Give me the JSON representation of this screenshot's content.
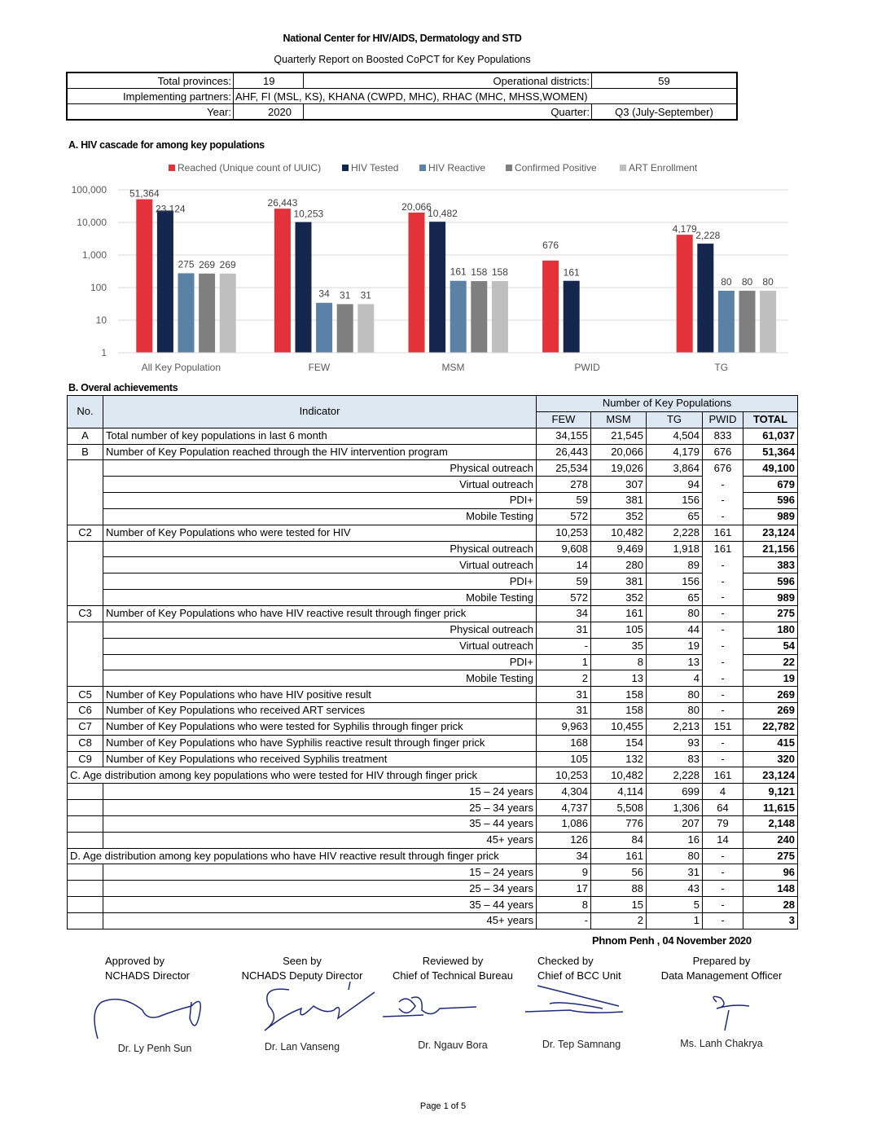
{
  "header": {
    "org": "National Center for HIV/AIDS, Dermatology and STD",
    "report_title": "Quarterly Report on Boosted CoPCT for Key Populations",
    "total_provinces_label": "Total provinces:",
    "total_provinces": "19",
    "operational_districts_label": "Operational districts:",
    "operational_districts": "59",
    "partners_label": "Implementing partners:",
    "partners": "AHF, FI (MSL, KS), KHANA (CWPD, MHC), RHAC (MHC, MHSS,WOMEN)",
    "year_label": "Year:",
    "year": "2020",
    "quarter_label": "Quarter:",
    "quarter": "Q3 (July-September)"
  },
  "section_a": "A. HIV cascade for among key populations",
  "chart_data": {
    "type": "bar",
    "title": "",
    "xlabel": "",
    "ylabel": "",
    "yscale": "log",
    "ylim": [
      1,
      100000
    ],
    "yticks": [
      "1",
      "10",
      "100",
      "1,000",
      "10,000",
      "100,000"
    ],
    "grid": true,
    "legend": "top",
    "categories": [
      "All Key Population",
      "FEW",
      "MSM",
      "PWID",
      "TG"
    ],
    "series": [
      {
        "name": "Reached (Unique count of UUIC)",
        "color": "#e3323a",
        "values": [
          51364,
          26443,
          20066,
          676,
          4179
        ],
        "labels": [
          "51,364",
          "26,443",
          "20,066",
          "676",
          "4,179"
        ]
      },
      {
        "name": "HIV Tested",
        "color": "#14264d",
        "values": [
          23124,
          10253,
          10482,
          161,
          2228
        ],
        "labels": [
          "23,124",
          "10,253",
          "10,482",
          "161",
          "2,228"
        ]
      },
      {
        "name": "HIV Reactive",
        "color": "#5b82a5",
        "values": [
          275,
          34,
          161,
          null,
          80
        ],
        "labels": [
          "275",
          "34",
          "161",
          "",
          "80"
        ]
      },
      {
        "name": "Confirmed Positive",
        "color": "#7f7f7f",
        "values": [
          269,
          31,
          158,
          null,
          80
        ],
        "labels": [
          "269",
          "31",
          "158",
          "",
          "80"
        ]
      },
      {
        "name": "ART Enrollment",
        "color": "#bfbfbf",
        "values": [
          269,
          31,
          158,
          null,
          80
        ],
        "labels": [
          "269",
          "31",
          "158",
          "",
          "80"
        ]
      }
    ]
  },
  "section_b": "B. Overal achievements",
  "table": {
    "h_no": "No.",
    "h_indicator": "Indicator",
    "h_group": "Number of Key Populations",
    "cols": [
      "FEW",
      "MSM",
      "TG",
      "PWID",
      "TOTAL"
    ],
    "rows": [
      {
        "no": "A",
        "ind": "Total number of key populations in last 6 month",
        "v": [
          "34,155",
          "21,545",
          "4,504",
          "833",
          "61,037"
        ]
      },
      {
        "no": "B",
        "ind": "Number of Key Population reached through the HIV intervention program",
        "v": [
          "26,443",
          "20,066",
          "4,179",
          "676",
          "51,364"
        ]
      },
      {
        "sub": true,
        "ind": "Physical outreach",
        "v": [
          "25,534",
          "19,026",
          "3,864",
          "676",
          "49,100"
        ]
      },
      {
        "sub": true,
        "ind": "Virtual outreach",
        "v": [
          "278",
          "307",
          "94",
          "-",
          "679"
        ]
      },
      {
        "sub": true,
        "ind": "PDI+",
        "v": [
          "59",
          "381",
          "156",
          "-",
          "596"
        ]
      },
      {
        "sub": true,
        "ind": "Mobile Testing",
        "v": [
          "572",
          "352",
          "65",
          "-",
          "989"
        ]
      },
      {
        "no": "C2",
        "ind": "Number of Key Populations who were tested for HIV",
        "v": [
          "10,253",
          "10,482",
          "2,228",
          "161",
          "23,124"
        ]
      },
      {
        "sub": true,
        "ind": "Physical outreach",
        "v": [
          "9,608",
          "9,469",
          "1,918",
          "161",
          "21,156"
        ]
      },
      {
        "sub": true,
        "ind": "Virtual outreach",
        "v": [
          "14",
          "280",
          "89",
          "-",
          "383"
        ]
      },
      {
        "sub": true,
        "ind": "PDI+",
        "v": [
          "59",
          "381",
          "156",
          "-",
          "596"
        ]
      },
      {
        "sub": true,
        "ind": "Mobile Testing",
        "v": [
          "572",
          "352",
          "65",
          "-",
          "989"
        ]
      },
      {
        "no": "C3",
        "ind": "Number of Key Populations who have HIV reactive result through finger prick",
        "v": [
          "34",
          "161",
          "80",
          "-",
          "275"
        ]
      },
      {
        "sub": true,
        "ind": "Physical outreach",
        "v": [
          "31",
          "105",
          "44",
          "-",
          "180"
        ]
      },
      {
        "sub": true,
        "ind": "Virtual outreach",
        "v": [
          "-",
          "35",
          "19",
          "-",
          "54"
        ]
      },
      {
        "sub": true,
        "ind": "PDI+",
        "v": [
          "1",
          "8",
          "13",
          "-",
          "22"
        ]
      },
      {
        "sub": true,
        "ind": "Mobile Testing",
        "v": [
          "2",
          "13",
          "4",
          "-",
          "19"
        ]
      },
      {
        "no": "C5",
        "ind": "Number of Key Populations who have HIV positive result",
        "v": [
          "31",
          "158",
          "80",
          "-",
          "269"
        ]
      },
      {
        "no": "C6",
        "ind": "Number of Key Populations who received ART services",
        "v": [
          "31",
          "158",
          "80",
          "-",
          "269"
        ]
      },
      {
        "no": "C7",
        "ind": "Number of Key Populations who were tested for Syphilis through finger prick",
        "v": [
          "9,963",
          "10,455",
          "2,213",
          "151",
          "22,782"
        ]
      },
      {
        "no": "C8",
        "ind": "Number of Key Populations who have Syphilis reactive result through finger prick",
        "v": [
          "168",
          "154",
          "93",
          "-",
          "415"
        ]
      },
      {
        "no": "C9",
        "ind": "Number of Key Populations who received Syphilis treatment",
        "v": [
          "105",
          "132",
          "83",
          "-",
          "320"
        ]
      },
      {
        "span": true,
        "ind": "C. Age distribution among key populations who were tested for HIV through finger prick",
        "v": [
          "10,253",
          "10,482",
          "2,228",
          "161",
          "23,124"
        ]
      },
      {
        "age": true,
        "ind": "15 – 24 years",
        "v": [
          "4,304",
          "4,114",
          "699",
          "4",
          "9,121"
        ]
      },
      {
        "age": true,
        "ind": "25 – 34 years",
        "v": [
          "4,737",
          "5,508",
          "1,306",
          "64",
          "11,615"
        ]
      },
      {
        "age": true,
        "ind": "35 – 44 years",
        "v": [
          "1,086",
          "776",
          "207",
          "79",
          "2,148"
        ]
      },
      {
        "age": true,
        "ind": "45+ years",
        "v": [
          "126",
          "84",
          "16",
          "14",
          "240"
        ]
      },
      {
        "span": true,
        "ind": "D. Age distribution among key populations who have HIV reactive result through finger prick",
        "v": [
          "34",
          "161",
          "80",
          "-",
          "275"
        ]
      },
      {
        "age": true,
        "ind": "15 – 24 years",
        "v": [
          "9",
          "56",
          "31",
          "-",
          "96"
        ]
      },
      {
        "age": true,
        "ind": "25 – 34 years",
        "v": [
          "17",
          "88",
          "43",
          "-",
          "148"
        ]
      },
      {
        "age": true,
        "ind": "35 – 44 years",
        "v": [
          "8",
          "15",
          "5",
          "-",
          "28"
        ]
      },
      {
        "age": true,
        "ind": "45+ years",
        "v": [
          "-",
          "2",
          "1",
          "-",
          "3"
        ]
      }
    ]
  },
  "place_date": "Phnom Penh , 04  November 2020",
  "signatories": [
    {
      "role": "Approved by",
      "title": "NCHADS Director",
      "name": "Dr. Ly Penh Sun"
    },
    {
      "role": "Seen by",
      "title": "NCHADS Deputy Director",
      "name": "Dr. Lan Vanseng"
    },
    {
      "role": "Reviewed by",
      "title": "Chief of Technical Bureau",
      "name": "Dr. Ngauv Bora"
    },
    {
      "role": "Checked by",
      "title": "Chief of BCC Unit",
      "name": "Dr. Tep Samnang"
    },
    {
      "role": "Prepared by",
      "title": "Data Management Officer",
      "name": "Ms. Lanh Chakrya"
    }
  ],
  "footer": {
    "page": "Page 1 of 5"
  }
}
